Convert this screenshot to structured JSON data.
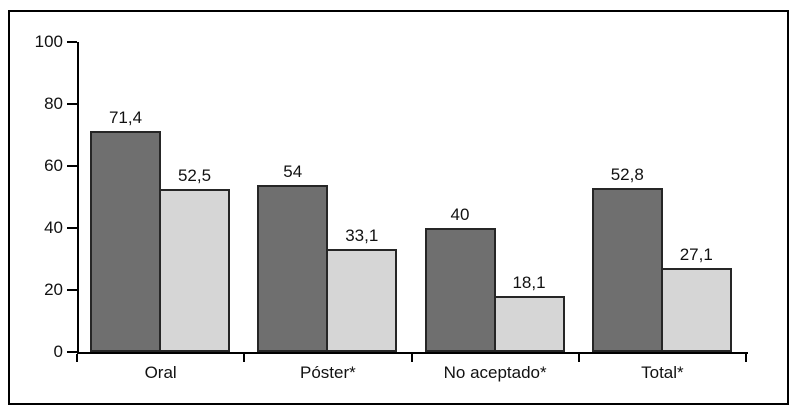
{
  "figure": {
    "background_color": "#ffffff",
    "frame_border_color": "#000000",
    "axis_color": "#000000",
    "text_color": "#111111"
  },
  "chart_data": {
    "type": "bar",
    "title": "",
    "xlabel": "",
    "ylabel": "",
    "categories": [
      "Oral",
      "Póster*",
      "No aceptado*",
      "Total*"
    ],
    "series": [
      {
        "name": "dark-gray-series",
        "color": "#6f6f6f",
        "border_color": "#262626",
        "values": [
          71.4,
          54,
          40,
          52.8
        ],
        "value_labels": [
          "71,4",
          "54",
          "40",
          "52,8"
        ]
      },
      {
        "name": "light-gray-series",
        "color": "#d6d6d6",
        "border_color": "#262626",
        "values": [
          52.5,
          33.1,
          18.1,
          27.1
        ],
        "value_labels": [
          "52,5",
          "33,1",
          "18,1",
          "27,1"
        ]
      }
    ],
    "ylim": [
      0,
      100
    ],
    "yticks": [
      0,
      20,
      40,
      60,
      80,
      100
    ],
    "grid": false,
    "legend_position": "none",
    "value_labels_shown": true,
    "decimal_separator": ","
  }
}
